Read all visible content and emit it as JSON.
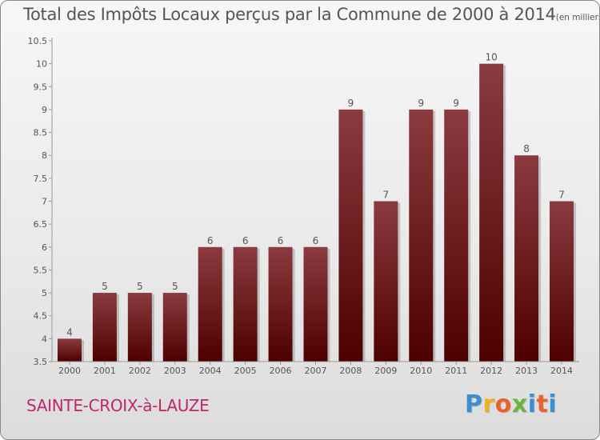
{
  "header": {
    "title": "Total des Impôts Locaux perçus par la Commune de 2000 à 2014",
    "unit": "(en milliers d'€)"
  },
  "commune": "SAINTE-CROIX-à-LAUZE",
  "brand": {
    "letters": [
      "P",
      "r",
      "o",
      "x",
      "i",
      "t",
      "i"
    ]
  },
  "colors": {
    "bar_top": "#8b3b40",
    "bar_bottom": "#4d0000",
    "commune": "#c0266d"
  },
  "chart_data": {
    "type": "bar",
    "title": "Total des Impôts Locaux perçus par la Commune de 2000 à 2014",
    "ylabel": "en milliers d'€",
    "xlabel": "",
    "categories": [
      "2000",
      "2001",
      "2002",
      "2003",
      "2004",
      "2005",
      "2006",
      "2007",
      "2008",
      "2009",
      "2010",
      "2011",
      "2012",
      "2013",
      "2014"
    ],
    "values": [
      4,
      5,
      5,
      5,
      6,
      6,
      6,
      6,
      9,
      7,
      9,
      9,
      10,
      8,
      7
    ],
    "ylim": [
      3.5,
      10.5
    ],
    "yticks": [
      "3.5",
      "4",
      "4.5",
      "5",
      "5.5",
      "6",
      "6.5",
      "7",
      "7.5",
      "8",
      "8.5",
      "9",
      "9.5",
      "10",
      "10.5"
    ],
    "grid": false
  }
}
